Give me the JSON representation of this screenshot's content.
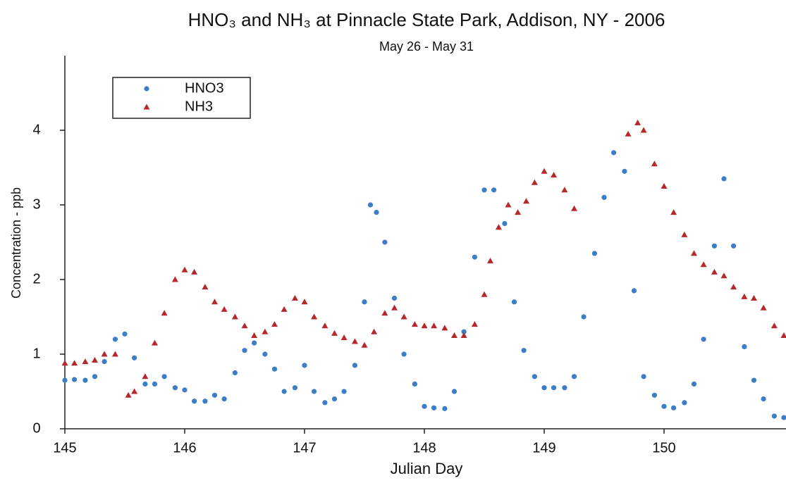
{
  "chart_data": {
    "type": "scatter",
    "title": "HNO₃ and NH₃ at Pinnacle State Park, Addison, NY - 2006",
    "subtitle": "May 26 - May 31",
    "x_label": "Julian Day",
    "y_label": "Concentration - ppb",
    "xlim": [
      145,
      151
    ],
    "xticks": [
      145,
      146,
      147,
      148,
      149,
      150
    ],
    "ylim": [
      0,
      5
    ],
    "yticks": [
      0,
      1,
      2,
      3,
      4
    ],
    "legend": "upper left",
    "series": [
      {
        "name": "HNO3",
        "color": "#3b7dc6",
        "marker": "circle",
        "x": [
          145.0,
          145.08,
          145.17,
          145.25,
          145.33,
          145.42,
          145.5,
          145.58,
          145.67,
          145.75,
          145.83,
          145.92,
          146.0,
          146.08,
          146.17,
          146.25,
          146.33,
          146.42,
          146.5,
          146.58,
          146.67,
          146.75,
          146.83,
          146.92,
          147.0,
          147.08,
          147.17,
          147.25,
          147.33,
          147.42,
          147.5,
          147.55,
          147.6,
          147.67,
          147.75,
          147.83,
          147.92,
          148.0,
          148.08,
          148.17,
          148.25,
          148.33,
          148.42,
          148.5,
          148.58,
          148.67,
          148.75,
          148.83,
          148.92,
          149.0,
          149.08,
          149.17,
          149.25,
          149.33,
          149.42,
          149.5,
          149.58,
          149.67,
          149.75,
          149.83,
          149.92,
          150.0,
          150.08,
          150.17,
          150.25,
          150.33,
          150.42,
          150.5,
          150.58,
          150.67,
          150.75,
          150.83,
          150.92,
          151.0
        ],
        "values": [
          0.65,
          0.66,
          0.65,
          0.7,
          0.9,
          1.2,
          1.27,
          0.95,
          0.6,
          0.6,
          0.7,
          0.55,
          0.52,
          0.37,
          0.37,
          0.45,
          0.4,
          0.75,
          1.05,
          1.15,
          1.0,
          0.8,
          0.5,
          0.55,
          0.85,
          0.5,
          0.35,
          0.4,
          0.5,
          0.85,
          1.7,
          3.0,
          2.9,
          2.5,
          1.75,
          1.0,
          0.6,
          0.3,
          0.28,
          0.27,
          0.5,
          1.3,
          2.3,
          3.2,
          3.2,
          2.75,
          1.7,
          1.05,
          0.7,
          0.55,
          0.55,
          0.55,
          0.7,
          1.5,
          2.35,
          3.1,
          3.7,
          3.45,
          1.85,
          0.7,
          0.45,
          0.3,
          0.28,
          0.35,
          0.6,
          1.2,
          2.45,
          3.35,
          2.45,
          1.1,
          0.65,
          0.4,
          0.17,
          0.15
        ]
      },
      {
        "name": "NH3",
        "color": "#b5282b",
        "marker": "triangle",
        "x": [
          145.0,
          145.08,
          145.17,
          145.25,
          145.33,
          145.42,
          145.53,
          145.58,
          145.67,
          145.75,
          145.83,
          145.92,
          146.0,
          146.08,
          146.17,
          146.25,
          146.33,
          146.42,
          146.5,
          146.58,
          146.67,
          146.75,
          146.83,
          146.92,
          147.0,
          147.08,
          147.17,
          147.25,
          147.33,
          147.42,
          147.5,
          147.58,
          147.67,
          147.75,
          147.83,
          147.92,
          148.0,
          148.08,
          148.17,
          148.25,
          148.33,
          148.42,
          148.5,
          148.55,
          148.62,
          148.7,
          148.78,
          148.85,
          148.92,
          149.0,
          149.08,
          149.17,
          149.25,
          149.7,
          149.78,
          149.83,
          149.92,
          150.0,
          150.08,
          150.17,
          150.25,
          150.33,
          150.42,
          150.5,
          150.58,
          150.67,
          150.75,
          150.83,
          150.92,
          151.0
        ],
        "values": [
          0.88,
          0.88,
          0.9,
          0.92,
          1.0,
          1.0,
          0.45,
          0.5,
          0.7,
          1.15,
          1.55,
          2.0,
          2.13,
          2.1,
          1.9,
          1.7,
          1.6,
          1.5,
          1.38,
          1.25,
          1.3,
          1.4,
          1.6,
          1.75,
          1.7,
          1.5,
          1.38,
          1.28,
          1.22,
          1.17,
          1.12,
          1.3,
          1.55,
          1.62,
          1.5,
          1.4,
          1.38,
          1.38,
          1.35,
          1.25,
          1.25,
          1.4,
          1.8,
          2.25,
          2.7,
          3.0,
          2.9,
          3.05,
          3.3,
          3.45,
          3.4,
          3.2,
          2.95,
          3.95,
          4.1,
          4.0,
          3.55,
          3.25,
          2.9,
          2.6,
          2.35,
          2.2,
          2.1,
          2.05,
          1.9,
          1.77,
          1.75,
          1.62,
          1.38,
          1.25
        ]
      }
    ]
  }
}
